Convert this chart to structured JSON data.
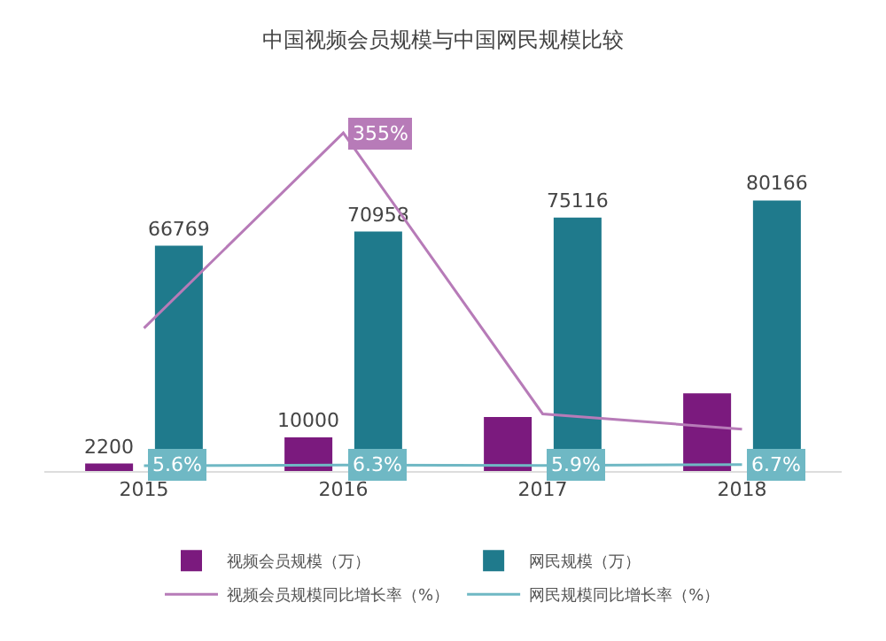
{
  "chart_data": {
    "type": "bar",
    "title": "中国视频会员规模与中国网民规模比较",
    "categories": [
      "2015",
      "2016",
      "2017",
      "2018"
    ],
    "series": [
      {
        "name": "视频会员规模（万）",
        "color": "#7b1a7e",
        "values": [
          2200,
          10000,
          16000,
          23000
        ],
        "value_labels": [
          "2200",
          "10000",
          null,
          null
        ]
      },
      {
        "name": "网民规模（万）",
        "color": "#1f7a8c",
        "values": [
          66769,
          70958,
          75116,
          80166
        ],
        "value_labels": [
          "66769",
          "70958",
          "75116",
          "80166"
        ]
      },
      {
        "name": "视频会员规模同比增长率（%）",
        "type": "line",
        "axis": "y2",
        "color": "#b77bb8",
        "values": [
          150,
          355,
          60,
          44
        ],
        "value_labels": [
          null,
          "355%",
          null,
          null
        ]
      },
      {
        "name": "网民规模同比增长率（%）",
        "type": "line",
        "axis": "y2",
        "color": "#6fb8c4",
        "values": [
          5.6,
          6.3,
          5.9,
          6.7
        ],
        "value_labels": [
          "5.6%",
          "6.3%",
          "5.9%",
          "6.7%"
        ]
      }
    ],
    "tick_labels": "x",
    "grid": false,
    "legend": "bottom",
    "marker": "none"
  }
}
